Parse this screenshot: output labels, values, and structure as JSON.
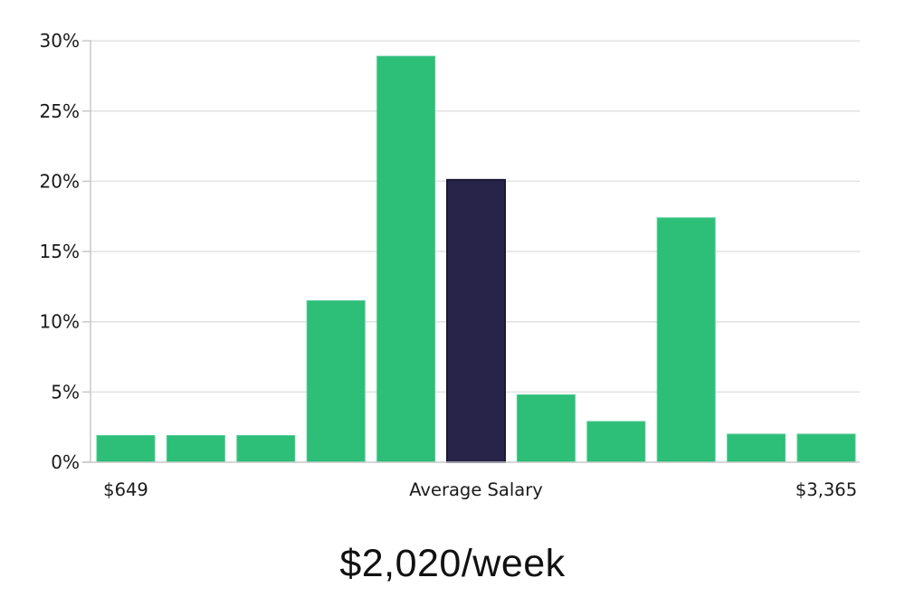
{
  "chart_data": {
    "type": "bar",
    "title": "$2,020/week",
    "values": [
      1.9,
      1.9,
      1.9,
      11.5,
      28.9,
      20.1,
      4.8,
      2.9,
      17.4,
      2.0,
      2.0
    ],
    "unit": "percent",
    "highlight_index": 5,
    "y_ticks": [
      0,
      5,
      10,
      15,
      20,
      25,
      30
    ],
    "y_tick_labels": [
      "0%",
      "5%",
      "10%",
      "15%",
      "20%",
      "25%",
      "30%"
    ],
    "ylim": [
      0,
      30
    ],
    "x_labels": [
      {
        "text": "$649",
        "bar_index": 0
      },
      {
        "text": "Average Salary",
        "bar_index": 5
      },
      {
        "text": "$3,365",
        "bar_index": 10
      }
    ],
    "grid_on": true,
    "legend": "none",
    "bar_color": "#2dbe78",
    "bar_edge_color": "#55cc95",
    "highlight_color": "#282349",
    "highlight_border_color": "#1b1838",
    "grid_color": "#e2e2e2",
    "axis_color": "#c8c8c8",
    "text_color": "#1a1a1a"
  }
}
